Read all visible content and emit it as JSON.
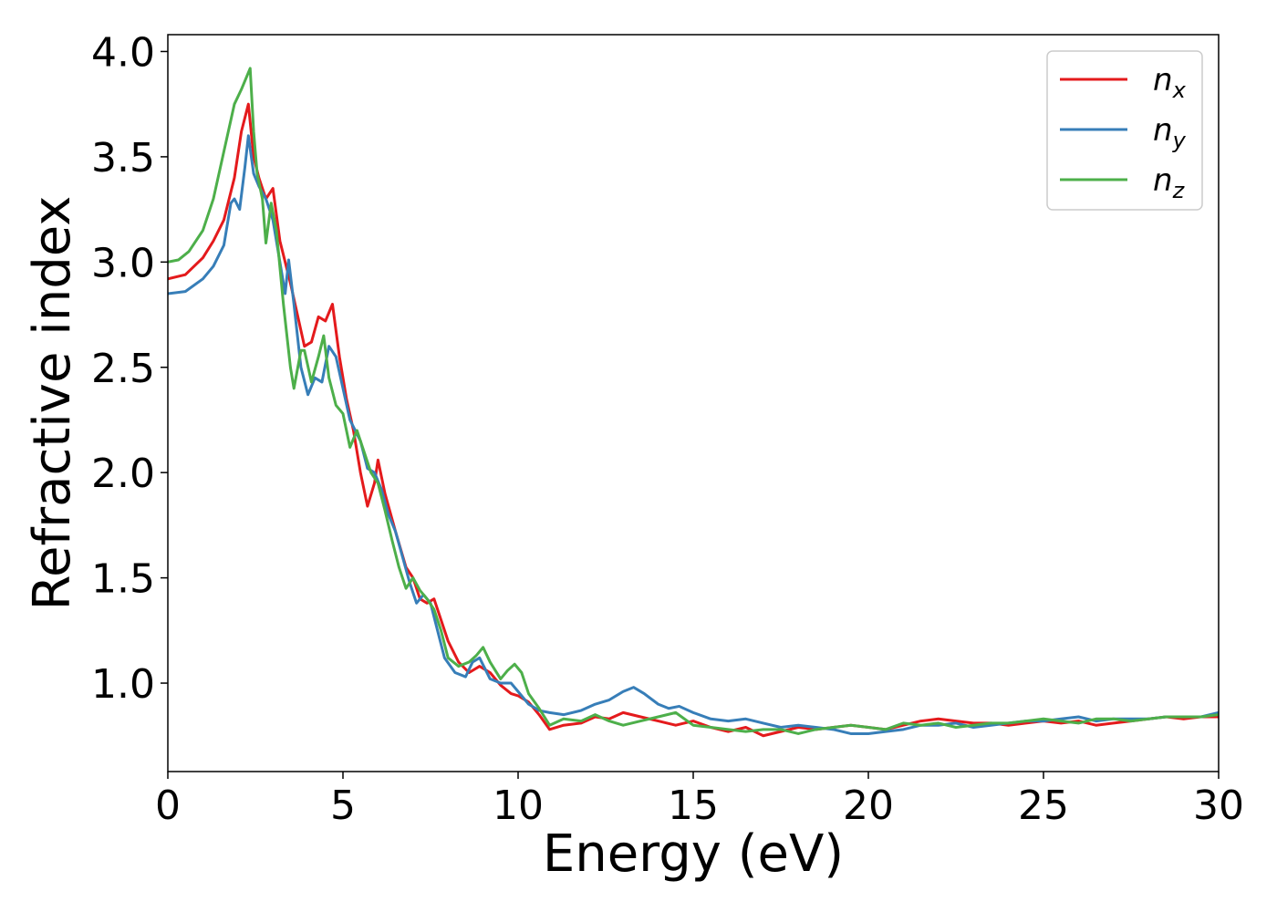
{
  "chart_data": {
    "type": "line",
    "title": "",
    "xlabel": "Energy (eV)",
    "ylabel": "Refractive index",
    "xlim": [
      0,
      30
    ],
    "ylim": [
      0.58,
      4.08
    ],
    "xticks": [
      "0",
      "5",
      "10",
      "15",
      "20",
      "25",
      "30"
    ],
    "yticks": [
      "1.0",
      "1.5",
      "2.0",
      "2.5",
      "3.0",
      "3.5",
      "4.0"
    ],
    "grid": false,
    "legend_position": "top-right",
    "series": [
      {
        "name": "n_x",
        "label_base": "n",
        "label_sub": "x",
        "color": "#e41a1c",
        "points": [
          [
            0,
            2.92
          ],
          [
            0.5,
            2.94
          ],
          [
            1,
            3.02
          ],
          [
            1.3,
            3.1
          ],
          [
            1.6,
            3.2
          ],
          [
            1.9,
            3.4
          ],
          [
            2.1,
            3.62
          ],
          [
            2.3,
            3.75
          ],
          [
            2.45,
            3.5
          ],
          [
            2.6,
            3.4
          ],
          [
            2.8,
            3.3
          ],
          [
            3.0,
            3.35
          ],
          [
            3.2,
            3.1
          ],
          [
            3.5,
            2.9
          ],
          [
            3.7,
            2.75
          ],
          [
            3.9,
            2.6
          ],
          [
            4.1,
            2.62
          ],
          [
            4.3,
            2.74
          ],
          [
            4.5,
            2.72
          ],
          [
            4.7,
            2.8
          ],
          [
            4.9,
            2.55
          ],
          [
            5.1,
            2.35
          ],
          [
            5.3,
            2.2
          ],
          [
            5.5,
            2.0
          ],
          [
            5.7,
            1.84
          ],
          [
            5.9,
            1.95
          ],
          [
            6.0,
            2.06
          ],
          [
            6.2,
            1.9
          ],
          [
            6.5,
            1.72
          ],
          [
            6.8,
            1.55
          ],
          [
            7.0,
            1.5
          ],
          [
            7.2,
            1.4
          ],
          [
            7.4,
            1.38
          ],
          [
            7.6,
            1.4
          ],
          [
            7.8,
            1.3
          ],
          [
            8.0,
            1.2
          ],
          [
            8.3,
            1.1
          ],
          [
            8.6,
            1.05
          ],
          [
            8.9,
            1.08
          ],
          [
            9.2,
            1.05
          ],
          [
            9.5,
            0.99
          ],
          [
            9.8,
            0.95
          ],
          [
            10.0,
            0.94
          ],
          [
            10.3,
            0.91
          ],
          [
            10.6,
            0.85
          ],
          [
            10.9,
            0.78
          ],
          [
            11.3,
            0.8
          ],
          [
            11.8,
            0.81
          ],
          [
            12.2,
            0.84
          ],
          [
            12.6,
            0.83
          ],
          [
            13.0,
            0.86
          ],
          [
            13.5,
            0.84
          ],
          [
            14.0,
            0.82
          ],
          [
            14.5,
            0.8
          ],
          [
            15.0,
            0.82
          ],
          [
            15.5,
            0.79
          ],
          [
            16.0,
            0.77
          ],
          [
            16.5,
            0.79
          ],
          [
            17.0,
            0.75
          ],
          [
            17.5,
            0.77
          ],
          [
            18.0,
            0.79
          ],
          [
            18.5,
            0.78
          ],
          [
            19.0,
            0.79
          ],
          [
            19.5,
            0.8
          ],
          [
            20.0,
            0.79
          ],
          [
            20.5,
            0.78
          ],
          [
            21.0,
            0.8
          ],
          [
            21.5,
            0.82
          ],
          [
            22.0,
            0.83
          ],
          [
            22.5,
            0.82
          ],
          [
            23.0,
            0.81
          ],
          [
            23.5,
            0.81
          ],
          [
            24.0,
            0.8
          ],
          [
            24.5,
            0.81
          ],
          [
            25.0,
            0.82
          ],
          [
            25.5,
            0.81
          ],
          [
            26.0,
            0.82
          ],
          [
            26.5,
            0.8
          ],
          [
            27.0,
            0.81
          ],
          [
            27.5,
            0.82
          ],
          [
            28.0,
            0.83
          ],
          [
            28.5,
            0.84
          ],
          [
            29.0,
            0.83
          ],
          [
            29.5,
            0.84
          ],
          [
            30.0,
            0.84
          ]
        ]
      },
      {
        "name": "n_y",
        "label_base": "n",
        "label_sub": "y",
        "color": "#377eb8",
        "points": [
          [
            0,
            2.85
          ],
          [
            0.5,
            2.86
          ],
          [
            1,
            2.92
          ],
          [
            1.3,
            2.98
          ],
          [
            1.6,
            3.08
          ],
          [
            1.8,
            3.28
          ],
          [
            1.9,
            3.3
          ],
          [
            2.05,
            3.25
          ],
          [
            2.2,
            3.45
          ],
          [
            2.3,
            3.6
          ],
          [
            2.45,
            3.42
          ],
          [
            2.6,
            3.36
          ],
          [
            2.8,
            3.3
          ],
          [
            3.0,
            3.2
          ],
          [
            3.2,
            3.0
          ],
          [
            3.35,
            2.85
          ],
          [
            3.45,
            3.01
          ],
          [
            3.6,
            2.8
          ],
          [
            3.8,
            2.5
          ],
          [
            4.0,
            2.37
          ],
          [
            4.2,
            2.45
          ],
          [
            4.4,
            2.43
          ],
          [
            4.6,
            2.6
          ],
          [
            4.8,
            2.55
          ],
          [
            5.0,
            2.4
          ],
          [
            5.2,
            2.25
          ],
          [
            5.5,
            2.15
          ],
          [
            5.7,
            2.02
          ],
          [
            5.9,
            2.0
          ],
          [
            6.1,
            1.92
          ],
          [
            6.3,
            1.8
          ],
          [
            6.5,
            1.72
          ],
          [
            6.7,
            1.6
          ],
          [
            6.9,
            1.48
          ],
          [
            7.1,
            1.38
          ],
          [
            7.3,
            1.42
          ],
          [
            7.5,
            1.38
          ],
          [
            7.7,
            1.25
          ],
          [
            7.9,
            1.12
          ],
          [
            8.2,
            1.05
          ],
          [
            8.5,
            1.03
          ],
          [
            8.7,
            1.1
          ],
          [
            8.9,
            1.12
          ],
          [
            9.2,
            1.02
          ],
          [
            9.5,
            1.0
          ],
          [
            9.8,
            1.0
          ],
          [
            10.0,
            0.96
          ],
          [
            10.3,
            0.9
          ],
          [
            10.6,
            0.87
          ],
          [
            10.9,
            0.86
          ],
          [
            11.3,
            0.85
          ],
          [
            11.8,
            0.87
          ],
          [
            12.2,
            0.9
          ],
          [
            12.6,
            0.92
          ],
          [
            13.0,
            0.96
          ],
          [
            13.3,
            0.98
          ],
          [
            13.6,
            0.95
          ],
          [
            14.0,
            0.9
          ],
          [
            14.3,
            0.88
          ],
          [
            14.6,
            0.89
          ],
          [
            15.0,
            0.86
          ],
          [
            15.5,
            0.83
          ],
          [
            16.0,
            0.82
          ],
          [
            16.5,
            0.83
          ],
          [
            17.0,
            0.81
          ],
          [
            17.5,
            0.79
          ],
          [
            18.0,
            0.8
          ],
          [
            18.5,
            0.79
          ],
          [
            19.0,
            0.78
          ],
          [
            19.5,
            0.76
          ],
          [
            20.0,
            0.76
          ],
          [
            20.5,
            0.77
          ],
          [
            21.0,
            0.78
          ],
          [
            21.5,
            0.8
          ],
          [
            22.0,
            0.8
          ],
          [
            22.5,
            0.81
          ],
          [
            23.0,
            0.79
          ],
          [
            23.5,
            0.8
          ],
          [
            24.0,
            0.81
          ],
          [
            24.5,
            0.82
          ],
          [
            25.0,
            0.82
          ],
          [
            25.5,
            0.83
          ],
          [
            26.0,
            0.84
          ],
          [
            26.5,
            0.82
          ],
          [
            27.0,
            0.83
          ],
          [
            27.5,
            0.83
          ],
          [
            28.0,
            0.83
          ],
          [
            28.5,
            0.84
          ],
          [
            29.0,
            0.84
          ],
          [
            29.5,
            0.84
          ],
          [
            30.0,
            0.86
          ]
        ]
      },
      {
        "name": "n_z",
        "label_base": "n",
        "label_sub": "z",
        "color": "#4daf4a",
        "points": [
          [
            0,
            3.0
          ],
          [
            0.3,
            3.01
          ],
          [
            0.6,
            3.05
          ],
          [
            1.0,
            3.15
          ],
          [
            1.3,
            3.3
          ],
          [
            1.5,
            3.45
          ],
          [
            1.7,
            3.6
          ],
          [
            1.9,
            3.75
          ],
          [
            2.1,
            3.82
          ],
          [
            2.25,
            3.88
          ],
          [
            2.35,
            3.92
          ],
          [
            2.45,
            3.62
          ],
          [
            2.55,
            3.42
          ],
          [
            2.7,
            3.3
          ],
          [
            2.8,
            3.09
          ],
          [
            2.95,
            3.28
          ],
          [
            3.1,
            3.15
          ],
          [
            3.3,
            2.8
          ],
          [
            3.5,
            2.5
          ],
          [
            3.6,
            2.4
          ],
          [
            3.8,
            2.58
          ],
          [
            3.9,
            2.58
          ],
          [
            4.1,
            2.43
          ],
          [
            4.3,
            2.55
          ],
          [
            4.45,
            2.65
          ],
          [
            4.6,
            2.45
          ],
          [
            4.8,
            2.32
          ],
          [
            5.0,
            2.28
          ],
          [
            5.2,
            2.12
          ],
          [
            5.4,
            2.2
          ],
          [
            5.6,
            2.1
          ],
          [
            5.8,
            2.0
          ],
          [
            6.0,
            1.95
          ],
          [
            6.2,
            1.82
          ],
          [
            6.4,
            1.68
          ],
          [
            6.6,
            1.55
          ],
          [
            6.8,
            1.45
          ],
          [
            7.0,
            1.5
          ],
          [
            7.2,
            1.44
          ],
          [
            7.4,
            1.4
          ],
          [
            7.6,
            1.35
          ],
          [
            7.8,
            1.25
          ],
          [
            8.0,
            1.12
          ],
          [
            8.3,
            1.08
          ],
          [
            8.6,
            1.1
          ],
          [
            8.8,
            1.13
          ],
          [
            9.0,
            1.17
          ],
          [
            9.2,
            1.1
          ],
          [
            9.5,
            1.02
          ],
          [
            9.7,
            1.06
          ],
          [
            9.9,
            1.09
          ],
          [
            10.1,
            1.05
          ],
          [
            10.3,
            0.95
          ],
          [
            10.6,
            0.88
          ],
          [
            10.9,
            0.8
          ],
          [
            11.3,
            0.83
          ],
          [
            11.8,
            0.82
          ],
          [
            12.2,
            0.85
          ],
          [
            12.6,
            0.82
          ],
          [
            13.0,
            0.8
          ],
          [
            13.5,
            0.82
          ],
          [
            14.0,
            0.84
          ],
          [
            14.5,
            0.86
          ],
          [
            15.0,
            0.8
          ],
          [
            15.5,
            0.79
          ],
          [
            16.0,
            0.78
          ],
          [
            16.5,
            0.77
          ],
          [
            17.0,
            0.78
          ],
          [
            17.5,
            0.78
          ],
          [
            18.0,
            0.76
          ],
          [
            18.5,
            0.78
          ],
          [
            19.0,
            0.79
          ],
          [
            19.5,
            0.8
          ],
          [
            20.0,
            0.79
          ],
          [
            20.5,
            0.78
          ],
          [
            21.0,
            0.81
          ],
          [
            21.5,
            0.8
          ],
          [
            22.0,
            0.81
          ],
          [
            22.5,
            0.79
          ],
          [
            23.0,
            0.8
          ],
          [
            23.5,
            0.81
          ],
          [
            24.0,
            0.81
          ],
          [
            24.5,
            0.82
          ],
          [
            25.0,
            0.83
          ],
          [
            25.5,
            0.82
          ],
          [
            26.0,
            0.81
          ],
          [
            26.5,
            0.83
          ],
          [
            27.0,
            0.83
          ],
          [
            27.5,
            0.82
          ],
          [
            28.0,
            0.83
          ],
          [
            28.5,
            0.84
          ],
          [
            29.0,
            0.84
          ],
          [
            29.5,
            0.84
          ],
          [
            30.0,
            0.85
          ]
        ]
      }
    ]
  }
}
